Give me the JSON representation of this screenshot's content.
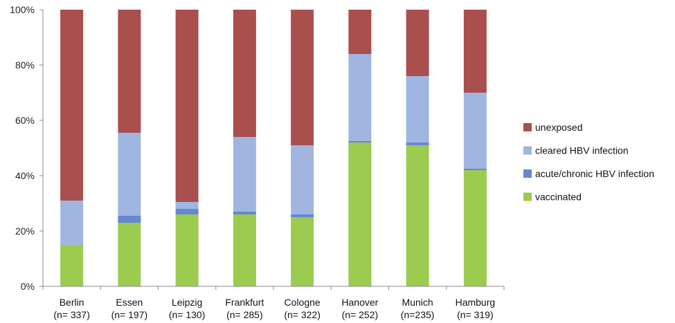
{
  "chart_data": {
    "type": "bar",
    "stacked": true,
    "percent_stacked": true,
    "categories": [
      "Berlin",
      "Essen",
      "Leipzig",
      "Frankfurt",
      "Cologne",
      "Hanover",
      "Munich",
      "Hamburg"
    ],
    "category_counts": [
      "(n= 337)",
      "(n= 197)",
      "(n= 130)",
      "(n= 285)",
      "(n= 322)",
      "(n= 252)",
      "(n=235)",
      "(n= 319)"
    ],
    "series": [
      {
        "name": "vaccinated",
        "color": "#9bcb4f",
        "values": [
          15,
          23,
          26,
          26,
          25,
          52,
          51,
          42
        ]
      },
      {
        "name": "acute/chronic HBV infection",
        "color": "#6687d2",
        "values": [
          0,
          2.5,
          2,
          1,
          1,
          0.5,
          1,
          0.5
        ]
      },
      {
        "name": "cleared HBV infection",
        "color": "#a0b6e0",
        "values": [
          16,
          30,
          2.5,
          27,
          25,
          31.5,
          24,
          27.5
        ]
      },
      {
        "name": "unexposed",
        "color": "#a94f4e",
        "values": [
          69,
          44.5,
          69.5,
          46,
          49,
          16,
          24,
          30
        ]
      }
    ],
    "legend_order": [
      "unexposed",
      "cleared HBV infection",
      "acute/chronic HBV infection",
      "vaccinated"
    ],
    "legend_position": "right",
    "ylim": [
      0,
      100
    ],
    "yticks": [
      "0%",
      "20%",
      "40%",
      "60%",
      "80%",
      "100%"
    ],
    "grid": false,
    "title": "",
    "xlabel": "",
    "ylabel": ""
  }
}
